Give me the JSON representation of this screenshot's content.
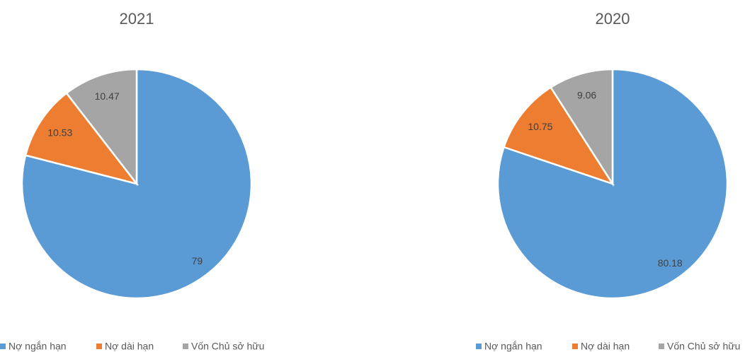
{
  "chart_data": [
    {
      "type": "pie",
      "title": "2021",
      "categories": [
        "Nợ ngắn hạn",
        "Nợ dài hạn",
        "Vốn Chủ sở hữu"
      ],
      "values": [
        79,
        10.53,
        10.47
      ],
      "colors": [
        "#5b9bd5",
        "#ed7d31",
        "#a5a5a5"
      ]
    },
    {
      "type": "pie",
      "title": "2020",
      "categories": [
        "Nợ ngắn hạn",
        "Nợ dài hạn",
        "Vốn Chủ sở hữu"
      ],
      "values": [
        80.18,
        10.75,
        9.06
      ],
      "colors": [
        "#5b9bd5",
        "#ed7d31",
        "#a5a5a5"
      ]
    }
  ]
}
